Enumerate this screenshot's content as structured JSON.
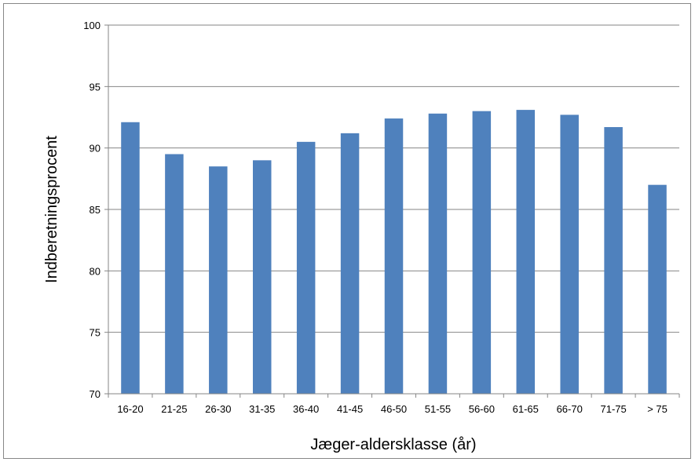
{
  "chart_data": {
    "type": "bar",
    "categories": [
      "16-20",
      "21-25",
      "26-30",
      "31-35",
      "36-40",
      "41-45",
      "46-50",
      "51-55",
      "56-60",
      "61-65",
      "66-70",
      "71-75",
      "> 75"
    ],
    "values": [
      92.1,
      89.5,
      88.5,
      89.0,
      90.5,
      91.2,
      92.4,
      92.8,
      93.0,
      93.1,
      92.7,
      91.7,
      87.0
    ],
    "xlabel": "Jæger-aldersklasse (år)",
    "ylabel": "Indberetningsprocent",
    "ylim": [
      70,
      100
    ],
    "yticks": [
      "70",
      "75",
      "80",
      "85",
      "90",
      "95",
      "100"
    ],
    "grid": true,
    "legend": "none",
    "bar_color": "#4f81bd"
  }
}
